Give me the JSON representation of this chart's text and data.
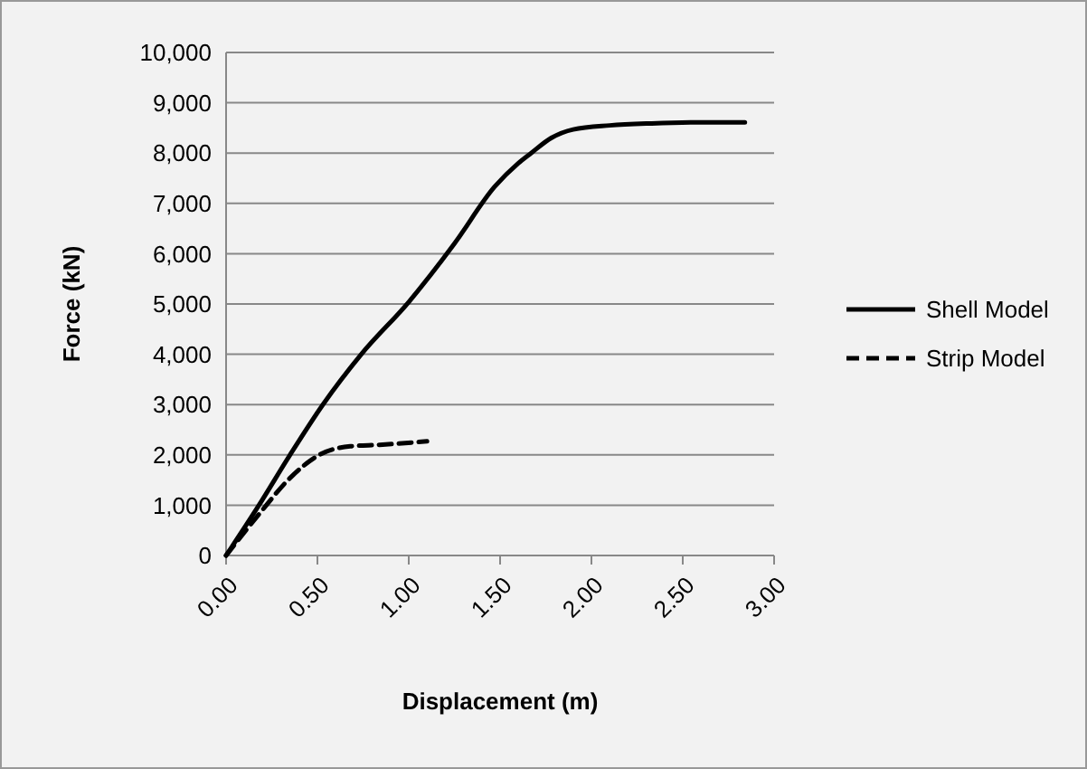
{
  "chart_data": {
    "type": "line",
    "xlabel": "Displacement (m)",
    "ylabel": "Force (kN)",
    "xlim": [
      0,
      3
    ],
    "ylim": [
      0,
      10000
    ],
    "xticks": [
      {
        "value": 0,
        "label": "0.00"
      },
      {
        "value": 0.5,
        "label": "0.50"
      },
      {
        "value": 1,
        "label": "1.00"
      },
      {
        "value": 1.5,
        "label": "1.50"
      },
      {
        "value": 2,
        "label": "2.00"
      },
      {
        "value": 2.5,
        "label": "2.50"
      },
      {
        "value": 3,
        "label": "3.00"
      }
    ],
    "yticks": [
      0,
      {
        "value": 1000,
        "label": "1,000"
      },
      {
        "value": 2000,
        "label": "2,000"
      },
      {
        "value": 3000,
        "label": "3,000"
      },
      {
        "value": 4000,
        "label": "4,000"
      },
      {
        "value": 5000,
        "label": "5,000"
      },
      {
        "value": 6000,
        "label": "6,000"
      },
      {
        "value": 7000,
        "label": "7,000"
      },
      {
        "value": 8000,
        "label": "8,000"
      },
      {
        "value": 9000,
        "label": "9,000"
      },
      {
        "value": 10000,
        "label": "10,000"
      }
    ],
    "grid": "y",
    "legend": "right",
    "marker": "none",
    "series": [
      {
        "name": "Shell Model",
        "color": "#000000",
        "line_style": "solid",
        "x": [
          0,
          0.18,
          0.35,
          0.53,
          0.74,
          1.0,
          1.25,
          1.47,
          1.6,
          1.67,
          1.78,
          1.9,
          2.1,
          2.33,
          2.6,
          2.84
        ],
        "values": [
          0,
          1000,
          2000,
          3000,
          4000,
          5040,
          6200,
          7330,
          7800,
          8000,
          8300,
          8470,
          8550,
          8590,
          8610,
          8610
        ]
      },
      {
        "name": "Strip Model",
        "color": "#000000",
        "line_style": "dashed",
        "x": [
          0,
          0.18,
          0.35,
          0.51,
          0.68,
          0.84,
          1.1
        ],
        "values": [
          0,
          820,
          1540,
          2000,
          2170,
          2200,
          2270
        ]
      }
    ]
  }
}
